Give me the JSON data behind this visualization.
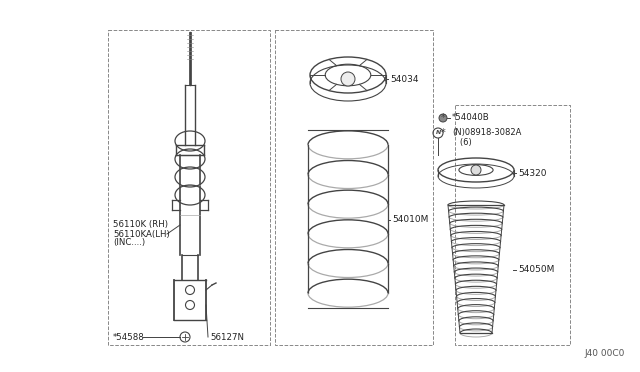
{
  "bg_color": "#ffffff",
  "line_color": "#444444",
  "dashed_color": "#888888",
  "watermark": "J40 00C0",
  "parts": {
    "strut_label1": "56110K (RH)",
    "strut_label2": "56110KA(LH)",
    "strut_label3": "(INC....)",
    "spring_label": "54010M",
    "seat_label": "54034",
    "bolt_label": "*54040B",
    "nut_label": "* (N)08918-3082A\n      (6)",
    "mount_label": "54320",
    "boot_label": "54050M",
    "bracket_label1": "*54588",
    "bracket_label2": "56127N"
  },
  "figsize": [
    6.4,
    3.72
  ],
  "dpi": 100
}
